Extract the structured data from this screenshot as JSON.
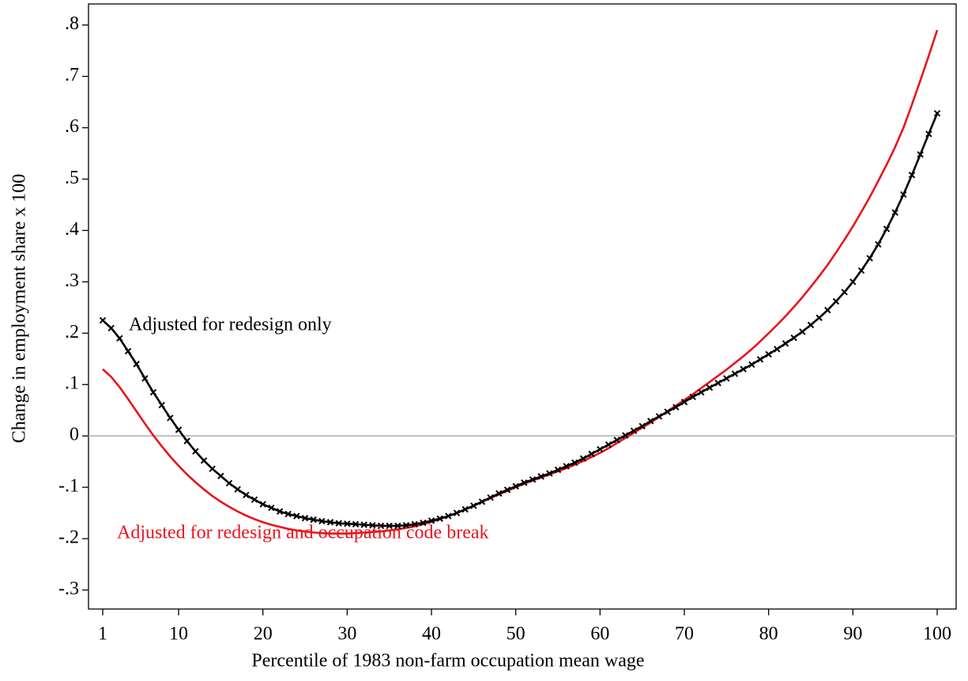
{
  "chart_data": {
    "type": "line",
    "xlabel": "Percentile of 1983 non-farm occupation mean wage",
    "ylabel": "Change in employment share x 100",
    "x": [
      1,
      2,
      3,
      4,
      5,
      6,
      7,
      8,
      9,
      10,
      11,
      12,
      13,
      14,
      15,
      16,
      17,
      18,
      19,
      20,
      21,
      22,
      23,
      24,
      25,
      26,
      27,
      28,
      29,
      30,
      31,
      32,
      33,
      34,
      35,
      36,
      37,
      38,
      39,
      40,
      41,
      42,
      43,
      44,
      45,
      46,
      47,
      48,
      49,
      50,
      51,
      52,
      53,
      54,
      55,
      56,
      57,
      58,
      59,
      60,
      61,
      62,
      63,
      64,
      65,
      66,
      67,
      68,
      69,
      70,
      71,
      72,
      73,
      74,
      75,
      76,
      77,
      78,
      79,
      80,
      81,
      82,
      83,
      84,
      85,
      86,
      87,
      88,
      89,
      90,
      91,
      92,
      93,
      94,
      95,
      96,
      97,
      98,
      99,
      100
    ],
    "series": [
      {
        "name": "Adjusted for redesign only",
        "color": "#000000",
        "marker": "x",
        "values": [
          0.225,
          0.21,
          0.19,
          0.165,
          0.14,
          0.112,
          0.085,
          0.06,
          0.035,
          0.012,
          -0.01,
          -0.03,
          -0.048,
          -0.064,
          -0.078,
          -0.092,
          -0.104,
          -0.115,
          -0.124,
          -0.133,
          -0.14,
          -0.147,
          -0.152,
          -0.156,
          -0.16,
          -0.163,
          -0.166,
          -0.168,
          -0.17,
          -0.171,
          -0.172,
          -0.173,
          -0.174,
          -0.175,
          -0.175,
          -0.175,
          -0.174,
          -0.172,
          -0.169,
          -0.165,
          -0.161,
          -0.156,
          -0.15,
          -0.143,
          -0.136,
          -0.128,
          -0.12,
          -0.112,
          -0.105,
          -0.098,
          -0.091,
          -0.085,
          -0.079,
          -0.073,
          -0.066,
          -0.059,
          -0.052,
          -0.044,
          -0.035,
          -0.026,
          -0.017,
          -0.008,
          0.001,
          0.01,
          0.019,
          0.029,
          0.038,
          0.047,
          0.056,
          0.066,
          0.076,
          0.085,
          0.094,
          0.103,
          0.112,
          0.121,
          0.13,
          0.139,
          0.149,
          0.159,
          0.169,
          0.18,
          0.191,
          0.203,
          0.216,
          0.23,
          0.245,
          0.262,
          0.28,
          0.3,
          0.322,
          0.346,
          0.373,
          0.403,
          0.435,
          0.47,
          0.508,
          0.548,
          0.588,
          0.628
        ]
      },
      {
        "name": "Adjusted for redesign and occupation code break",
        "color": "#e8141c",
        "values": [
          0.13,
          0.115,
          0.095,
          0.072,
          0.048,
          0.024,
          0.001,
          -0.02,
          -0.04,
          -0.058,
          -0.075,
          -0.09,
          -0.104,
          -0.117,
          -0.128,
          -0.138,
          -0.147,
          -0.155,
          -0.162,
          -0.168,
          -0.173,
          -0.177,
          -0.181,
          -0.184,
          -0.186,
          -0.188,
          -0.189,
          -0.19,
          -0.19,
          -0.19,
          -0.189,
          -0.188,
          -0.187,
          -0.186,
          -0.184,
          -0.182,
          -0.179,
          -0.176,
          -0.172,
          -0.167,
          -0.162,
          -0.156,
          -0.15,
          -0.143,
          -0.136,
          -0.128,
          -0.121,
          -0.114,
          -0.107,
          -0.1,
          -0.093,
          -0.087,
          -0.081,
          -0.075,
          -0.069,
          -0.063,
          -0.056,
          -0.049,
          -0.041,
          -0.033,
          -0.024,
          -0.014,
          -0.004,
          0.006,
          0.016,
          0.026,
          0.037,
          0.048,
          0.059,
          0.07,
          0.081,
          0.093,
          0.105,
          0.117,
          0.129,
          0.142,
          0.155,
          0.169,
          0.184,
          0.2,
          0.216,
          0.233,
          0.251,
          0.27,
          0.29,
          0.311,
          0.333,
          0.357,
          0.382,
          0.408,
          0.436,
          0.465,
          0.496,
          0.528,
          0.562,
          0.6,
          0.645,
          0.692,
          0.74,
          0.79
        ]
      }
    ],
    "xlim": [
      -0.69,
      102.25
    ],
    "ylim": [
      -0.337,
      0.841
    ],
    "xticks": [
      1,
      10,
      20,
      30,
      40,
      50,
      60,
      70,
      80,
      90,
      100
    ],
    "yticks": [
      {
        "value": -0.3,
        "label": "-.3"
      },
      {
        "value": -0.2,
        "label": "-.2"
      },
      {
        "value": -0.1,
        "label": "-.1"
      },
      0,
      {
        "value": 0.1,
        "label": ".1"
      },
      {
        "value": 0.2,
        "label": ".2"
      },
      {
        "value": 0.3,
        "label": ".3"
      },
      {
        "value": 0.4,
        "label": ".4"
      },
      {
        "value": 0.5,
        "label": ".5"
      },
      {
        "value": 0.6,
        "label": ".6"
      },
      {
        "value": 0.7,
        "label": ".7"
      },
      {
        "value": 0.8,
        "label": ".8"
      }
    ],
    "reference_line": {
      "value": 0,
      "color": "#c0c0c0"
    },
    "grid": false
  }
}
